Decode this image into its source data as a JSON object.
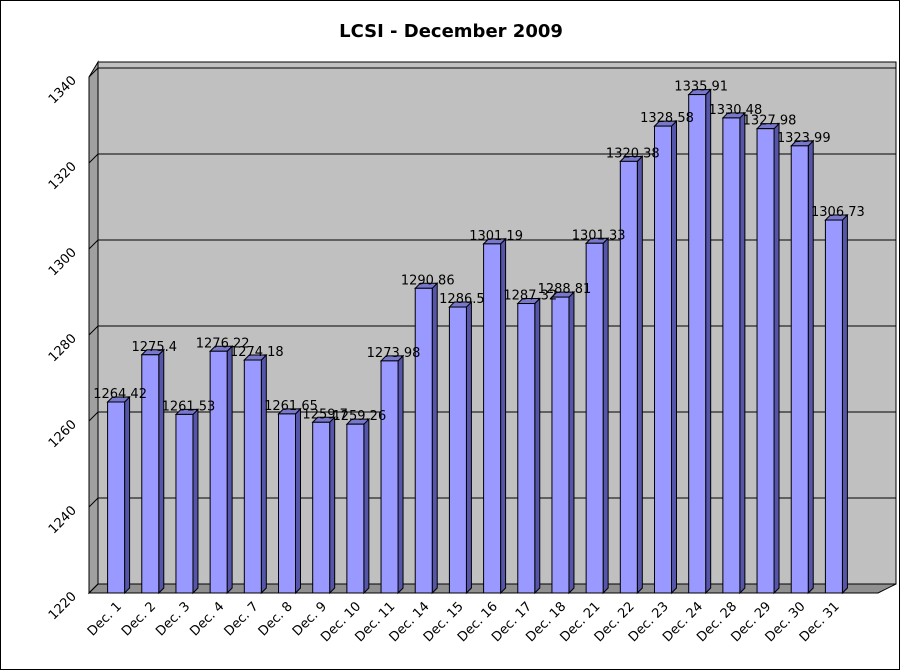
{
  "chart_data": {
    "type": "bar",
    "title": "LCSI - December 2009",
    "xlabel": "",
    "ylabel": "",
    "ylim": [
      1220,
      1340
    ],
    "yticks": [
      1220,
      1240,
      1260,
      1280,
      1300,
      1320,
      1340
    ],
    "grid": true,
    "categories": [
      "Dec. 1",
      "Dec. 2",
      "Dec. 3",
      "Dec. 4",
      "Dec. 7",
      "Dec. 8",
      "Dec. 9",
      "Dec. 10",
      "Dec. 11",
      "Dec. 14",
      "Dec. 15",
      "Dec. 16",
      "Dec. 17",
      "Dec. 18",
      "Dec. 21",
      "Dec. 22",
      "Dec. 23",
      "Dec. 24",
      "Dec. 28",
      "Dec. 29",
      "Dec. 30",
      "Dec. 31"
    ],
    "values": [
      1264.42,
      1275.4,
      1261.53,
      1276.22,
      1274.18,
      1261.65,
      1259.7,
      1259.26,
      1273.98,
      1290.86,
      1286.5,
      1301.19,
      1287.32,
      1288.81,
      1301.33,
      1320.38,
      1328.58,
      1335.91,
      1330.48,
      1327.98,
      1323.99,
      1306.73
    ],
    "colors": {
      "bar": "#9999ff",
      "bar_side": "#5555aa",
      "bar_top": "#7777cc",
      "wall": "#c0c0c0"
    }
  }
}
